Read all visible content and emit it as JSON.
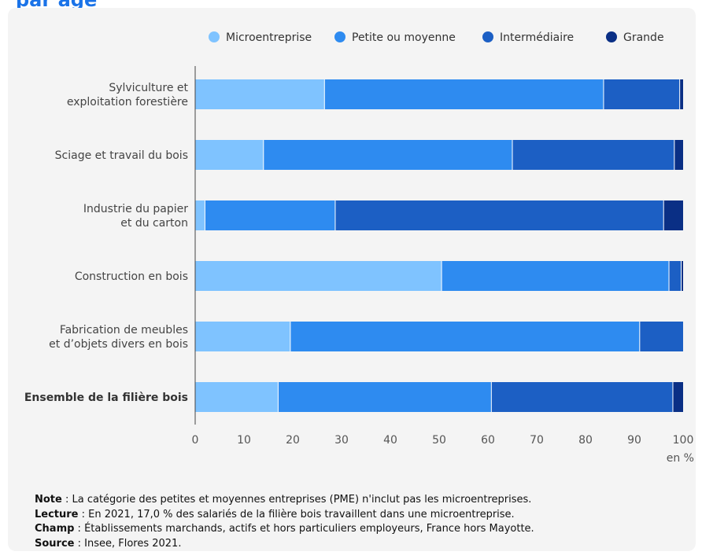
{
  "header": {
    "title_fragment": "par âge"
  },
  "chart_data": {
    "type": "bar",
    "orientation": "horizontal",
    "stacked": true,
    "categories": [
      [
        "Sylviculture et",
        "exploitation forestière"
      ],
      [
        "Sciage et travail du bois"
      ],
      [
        "Industrie du papier",
        "et du carton"
      ],
      [
        "Construction en bois"
      ],
      [
        "Fabrication de meubles",
        "et d’objets divers en bois"
      ],
      [
        "Ensemble de la filière bois"
      ]
    ],
    "bold_categories": [
      false,
      false,
      false,
      false,
      false,
      true
    ],
    "series": [
      {
        "name": "Microentreprise",
        "color": "#7fc3ff",
        "values": [
          26.5,
          14.0,
          2.0,
          50.5,
          19.5,
          17.0
        ]
      },
      {
        "name": "Petite ou moyenne",
        "color": "#2e8bf0",
        "values": [
          57.2,
          51.0,
          26.7,
          46.6,
          71.6,
          43.7
        ]
      },
      {
        "name": "Intermédiaire",
        "color": "#1c5fc4",
        "values": [
          15.6,
          33.2,
          67.3,
          2.5,
          8.9,
          37.2
        ]
      },
      {
        "name": "Grande",
        "color": "#0a2f85",
        "values": [
          0.7,
          1.8,
          4.0,
          0.4,
          0.0,
          2.1
        ]
      }
    ],
    "xlim": [
      0,
      100
    ],
    "xticks": [
      "0",
      "10",
      "20",
      "30",
      "40",
      "50",
      "60",
      "70",
      "80",
      "90",
      "100"
    ],
    "xunit": "en %",
    "legend_position": "top-right",
    "grid": false
  },
  "notes": [
    {
      "label": "Note",
      "text": " : La catégorie des petites et moyennes entreprises (PME) n'inclut pas les microentreprises."
    },
    {
      "label": "Lecture",
      "text": " : En 2021, 17,0 % des salariés de la filière bois travaillent dans une microentreprise."
    },
    {
      "label": "Champ",
      "text": " : Établissements marchands, actifs et hors particuliers employeurs, France hors Mayotte."
    },
    {
      "label": "Source",
      "text": " : Insee, Flores 2021."
    }
  ]
}
